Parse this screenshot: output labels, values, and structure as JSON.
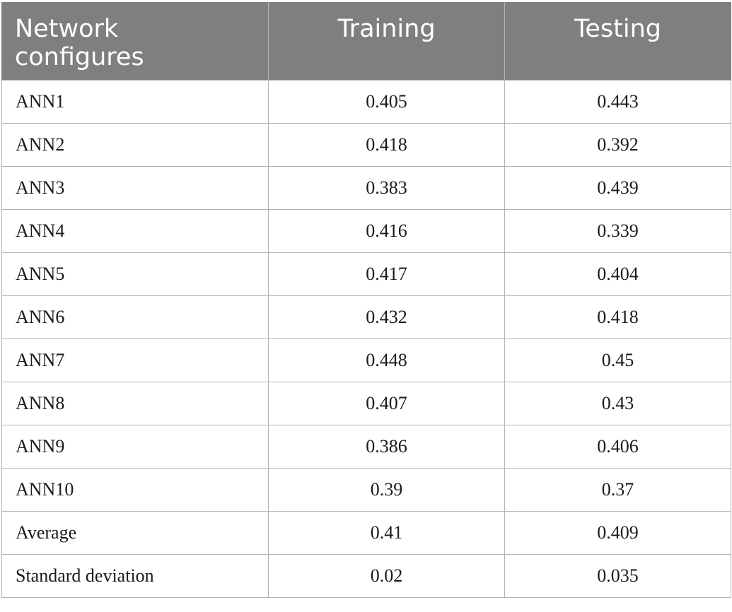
{
  "table": {
    "headers": [
      "Network configures",
      "Training",
      "Testing"
    ],
    "rows": [
      [
        "ANN1",
        "0.405",
        "0.443"
      ],
      [
        "ANN2",
        "0.418",
        "0.392"
      ],
      [
        "ANN3",
        "0.383",
        "0.439"
      ],
      [
        "ANN4",
        "0.416",
        "0.339"
      ],
      [
        "ANN5",
        "0.417",
        "0.404"
      ],
      [
        "ANN6",
        "0.432",
        "0.418"
      ],
      [
        "ANN7",
        "0.448",
        "0.45"
      ],
      [
        "ANN8",
        "0.407",
        "0.43"
      ],
      [
        "ANN9",
        "0.386",
        "0.406"
      ],
      [
        "ANN10",
        "0.39",
        "0.37"
      ],
      [
        "Average",
        "0.41",
        "0.409"
      ],
      [
        "Standard deviation",
        "0.02",
        "0.035"
      ]
    ]
  },
  "colors": {
    "header_background": "#7f7f7f",
    "header_text": "#ffffff",
    "border": "#b3b3b3",
    "cell_text": "#1a1a1a"
  }
}
